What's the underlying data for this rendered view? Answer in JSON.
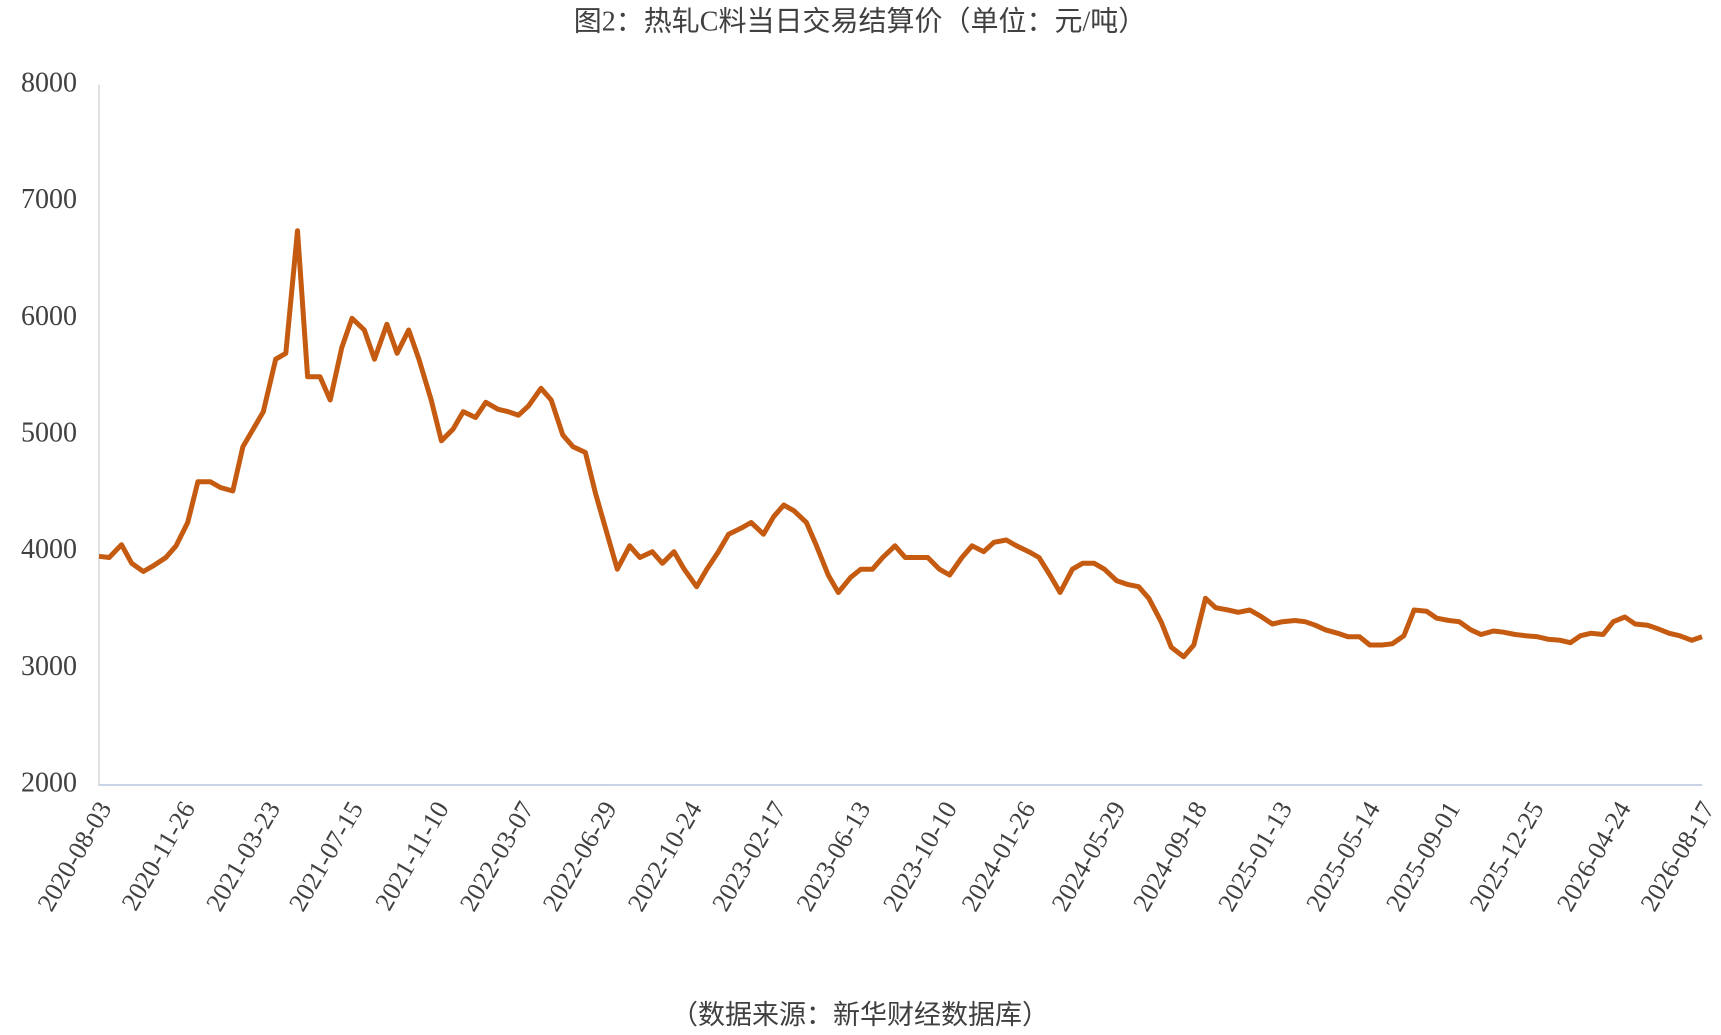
{
  "chart_data": {
    "type": "line",
    "title": "图2：热轧C料当日交易结算价（单位：元/吨）",
    "source": "（数据来源：新华财经数据库）",
    "color": "#c55a11",
    "ylim": [
      2000,
      8000
    ],
    "yticks": [
      2000,
      3000,
      4000,
      5000,
      6000,
      7000,
      8000
    ],
    "xlim": [
      "2020-08-03",
      "2026-08-17"
    ],
    "xticks": [
      "2020-08-03",
      "2020-11-26",
      "2021-03-23",
      "2021-07-15",
      "2021-11-10",
      "2022-03-07",
      "2022-06-29",
      "2022-10-24",
      "2023-02-17",
      "2023-06-13",
      "2023-10-10",
      "2024-01-26",
      "2024-05-29",
      "2024-09-18",
      "2025-01-13",
      "2025-05-14",
      "2025-09-01",
      "2025-12-25",
      "2026-04-24",
      "2026-08-17"
    ],
    "x": [
      "2020-08-03",
      "2020-08-17",
      "2020-09-03",
      "2020-09-17",
      "2020-10-03",
      "2020-10-17",
      "2020-11-03",
      "2020-11-17",
      "2020-12-03",
      "2020-12-17",
      "2021-01-03",
      "2021-01-17",
      "2021-02-03",
      "2021-02-17",
      "2021-03-03",
      "2021-03-17",
      "2021-04-03",
      "2021-04-17",
      "2021-05-03",
      "2021-05-17",
      "2021-06-03",
      "2021-06-17",
      "2021-07-03",
      "2021-07-17",
      "2021-08-03",
      "2021-08-17",
      "2021-09-03",
      "2021-09-17",
      "2021-10-03",
      "2021-10-17",
      "2021-11-03",
      "2021-11-17",
      "2021-12-03",
      "2021-12-17",
      "2022-01-03",
      "2022-01-17",
      "2022-02-03",
      "2022-02-17",
      "2022-03-03",
      "2022-03-17",
      "2022-04-03",
      "2022-04-17",
      "2022-05-03",
      "2022-05-17",
      "2022-06-03",
      "2022-06-17",
      "2022-07-03",
      "2022-07-17",
      "2022-08-03",
      "2022-08-17",
      "2022-09-03",
      "2022-09-17",
      "2022-10-03",
      "2022-10-17",
      "2022-11-03",
      "2022-11-17",
      "2022-12-03",
      "2022-12-17",
      "2023-01-03",
      "2023-01-17",
      "2023-02-03",
      "2023-02-17",
      "2023-03-03",
      "2023-03-17",
      "2023-04-03",
      "2023-04-17",
      "2023-05-03",
      "2023-05-17",
      "2023-06-03",
      "2023-06-17",
      "2023-07-03",
      "2023-07-17",
      "2023-08-03",
      "2023-08-17",
      "2023-09-03",
      "2023-09-17",
      "2023-10-03",
      "2023-10-17",
      "2023-11-03",
      "2023-11-17",
      "2023-12-03",
      "2023-12-17",
      "2024-01-03",
      "2024-01-17",
      "2024-02-03",
      "2024-02-17",
      "2024-03-03",
      "2024-03-17",
      "2024-04-03",
      "2024-04-17",
      "2024-05-03",
      "2024-05-17",
      "2024-06-03",
      "2024-06-17",
      "2024-07-03",
      "2024-07-17",
      "2024-08-03",
      "2024-08-17",
      "2024-09-03",
      "2024-09-17",
      "2024-10-03",
      "2024-10-17",
      "2024-11-03",
      "2024-11-17",
      "2024-12-03",
      "2024-12-17",
      "2025-01-03",
      "2025-01-17",
      "2025-02-03",
      "2025-02-17",
      "2025-03-03",
      "2025-03-17",
      "2025-04-03",
      "2025-04-17",
      "2025-05-03",
      "2025-05-17",
      "2025-06-03",
      "2025-06-17",
      "2025-07-03",
      "2025-07-17",
      "2025-08-03",
      "2025-08-17",
      "2025-09-03",
      "2025-09-17",
      "2025-10-03",
      "2025-10-17",
      "2025-11-03",
      "2025-11-17",
      "2025-12-03",
      "2025-12-17",
      "2026-01-03",
      "2026-01-17",
      "2026-02-03",
      "2026-02-17",
      "2026-03-03",
      "2026-03-17",
      "2026-04-03",
      "2026-04-17",
      "2026-05-03",
      "2026-05-17",
      "2026-06-03",
      "2026-06-17",
      "2026-07-03",
      "2026-07-17",
      "2026-08-03",
      "2026-08-17"
    ],
    "values": [
      3960,
      3950,
      4060,
      3900,
      3830,
      3880,
      3950,
      4050,
      4250,
      4600,
      4600,
      4550,
      4520,
      4900,
      5050,
      5200,
      5650,
      5700,
      6750,
      5500,
      5500,
      5300,
      5750,
      6000,
      5900,
      5650,
      5950,
      5700,
      5900,
      5650,
      5300,
      4950,
      5050,
      5200,
      5150,
      5280,
      5220,
      5200,
      5170,
      5250,
      5400,
      5300,
      5000,
      4900,
      4850,
      4500,
      4150,
      3850,
      4050,
      3950,
      4000,
      3900,
      4000,
      3850,
      3700,
      3850,
      4000,
      4150,
      4200,
      4250,
      4150,
      4300,
      4400,
      4350,
      4250,
      4050,
      3800,
      3650,
      3780,
      3850,
      3850,
      3950,
      4050,
      3950,
      3950,
      3950,
      3850,
      3800,
      3950,
      4050,
      4000,
      4080,
      4100,
      4050,
      4000,
      3950,
      3800,
      3650,
      3850,
      3900,
      3900,
      3850,
      3750,
      3720,
      3700,
      3600,
      3400,
      3180,
      3100,
      3200,
      3600,
      3520,
      3500,
      3480,
      3500,
      3450,
      3380,
      3400,
      3410,
      3400,
      3370,
      3330,
      3300,
      3270,
      3270,
      3200,
      3200,
      3210,
      3280,
      3500,
      3490,
      3430,
      3410,
      3400,
      3330,
      3290,
      3320,
      3310,
      3290,
      3280,
      3270,
      3250,
      3240,
      3220,
      3280,
      3300,
      3290,
      3400,
      3440,
      3380,
      3370,
      3340,
      3300,
      3280,
      3240,
      3270
    ]
  }
}
